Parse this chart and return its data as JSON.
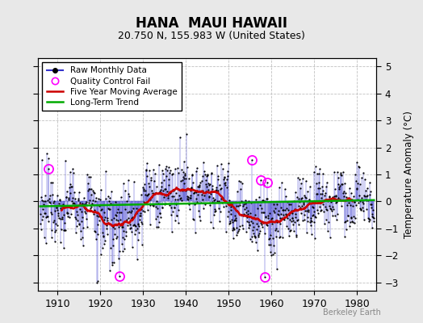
{
  "title": "HANA  MAUI HAWAII",
  "subtitle": "20.750 N, 155.983 W (United States)",
  "ylabel": "Temperature Anomaly (°C)",
  "xlim": [
    1905.5,
    1984.5
  ],
  "ylim": [
    -3.3,
    5.3
  ],
  "yticks": [
    -3,
    -2,
    -1,
    0,
    1,
    2,
    3,
    4,
    5
  ],
  "xticks": [
    1910,
    1920,
    1930,
    1940,
    1950,
    1960,
    1970,
    1980
  ],
  "background_color": "#e8e8e8",
  "plot_bg_color": "#ffffff",
  "grid_color": "#bbbbbb",
  "raw_color": "#3333cc",
  "ma_color": "#cc0000",
  "trend_color": "#00aa00",
  "qc_color": "#ff00ff",
  "watermark": "Berkeley Earth",
  "seed": 12345,
  "start_year": 1906,
  "end_year": 1984
}
